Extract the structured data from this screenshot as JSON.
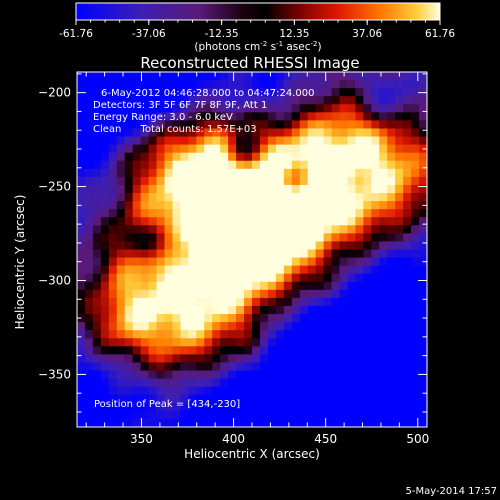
{
  "chart_data": {
    "type": "heatmap",
    "title": "Reconstructed RHESSI Image",
    "xlabel": "Heliocentric X (arcsec)",
    "ylabel": "Heliocentric Y (arcsec)",
    "xlim": [
      315,
      505
    ],
    "ylim": [
      -378,
      -189
    ],
    "x_ticks": [
      350,
      400,
      450,
      500
    ],
    "y_ticks": [
      -200,
      -250,
      -300,
      -350
    ],
    "colorbar": {
      "range": [
        -61.76,
        61.76
      ],
      "tick_labels": [
        "-61.76",
        "-37.06",
        "-12.35",
        "12.35",
        "37.06",
        "61.76"
      ],
      "units_prefix": "(photons cm",
      "units_sup1": "-2",
      "units_mid": " s",
      "units_sup2": "-1",
      "units_mid2": " asec",
      "units_sup3": "-2",
      "units_suffix": ")"
    },
    "annotations": {
      "time_range": "6-May-2012 04:46:28.000 to 04:47:24.000",
      "detectors": "Detectors: 3F 5F 6F 7F 8F 9F, Att 1",
      "energy": "Energy Range: 3.0 - 6.0 keV",
      "clean": "Clean      Total counts: 1.57E+03",
      "peak": "Position of Peak = [434,-230]"
    },
    "footer_date": "5-May-2014 17:57"
  }
}
